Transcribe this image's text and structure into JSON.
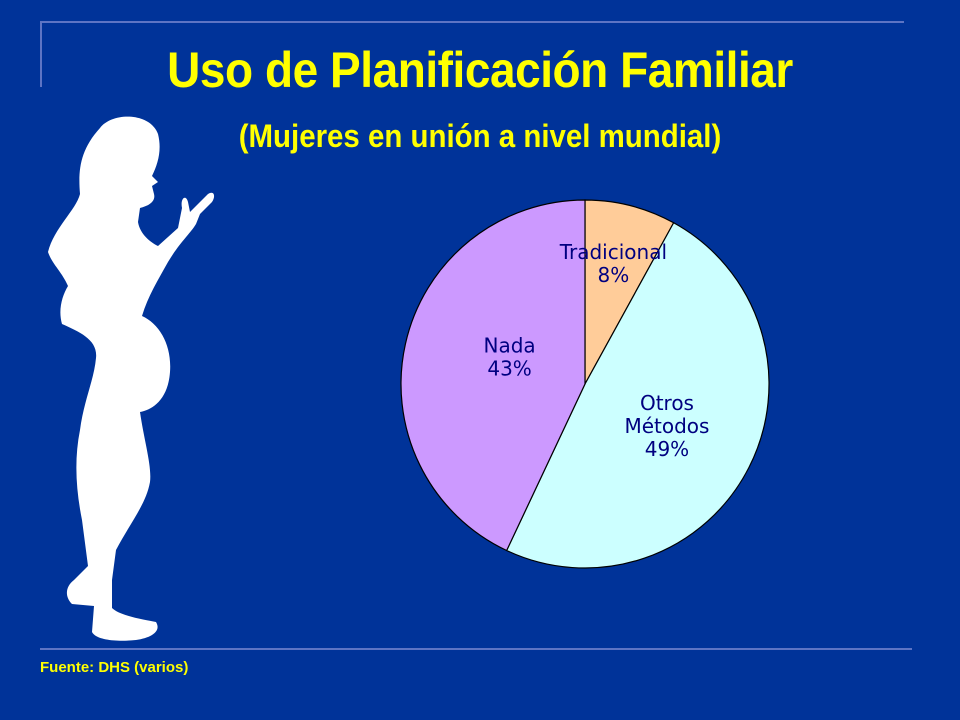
{
  "slide": {
    "title": "Uso de Planificación Familiar",
    "subtitle": "(Mujeres en unión a nivel mundial)",
    "source": "Fuente: DHS (varios)"
  },
  "colors": {
    "background": "#003399",
    "title": "#ffff00",
    "label": "#000080"
  },
  "chart_data": {
    "type": "pie",
    "title": "",
    "slices": [
      {
        "label": "Tradicional",
        "value": 8,
        "value_label": "8%",
        "color": "#ffcc99"
      },
      {
        "label": "Otros Métodos",
        "value": 49,
        "value_label": "49%",
        "color": "#ccffff"
      },
      {
        "label": "Nada",
        "value": 43,
        "value_label": "43%",
        "color": "#cc99ff"
      }
    ],
    "start": "12 o'clock",
    "direction": "clockwise",
    "legend": "none"
  }
}
